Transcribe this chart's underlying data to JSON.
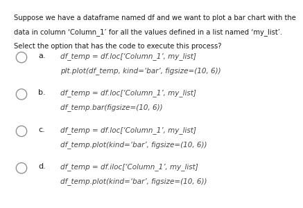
{
  "title_lines": [
    "Suppose we have a dataframe named df and we want to plot a bar chart with the",
    "data in column ‘Column_1’ for all the values defined in a list named ‘my_list’.",
    "Select the option that has the code to execute this process?"
  ],
  "options": [
    {
      "label": "a.",
      "lines": [
        "df_temp = df.loc[‘Column_1’, my_list]",
        "plt.plot(df_temp, kind=‘bar’, figsize=(10, 6))"
      ]
    },
    {
      "label": "b.",
      "lines": [
        "df_temp = df.loc[‘Column_1’, my_list]",
        "df_temp.bar(figsize=(10, 6))"
      ]
    },
    {
      "label": "c.",
      "lines": [
        "df_temp = df.loc[‘Column_1’, my_list]",
        "df_temp.plot(kind=‘bar’, figsize=(10, 6))"
      ]
    },
    {
      "label": "d.",
      "lines": [
        "df_temp = df.iloc[‘Column_1’, my_list]",
        "df_temp.plot(kind=‘bar’, figsize=(10, 6))"
      ]
    }
  ],
  "bg_color": "#ffffff",
  "text_color": "#1a1a1a",
  "code_color": "#444444",
  "circle_edge_color": "#888888",
  "title_fontsize": 7.2,
  "code_fontsize": 7.5,
  "label_fontsize": 8.0
}
